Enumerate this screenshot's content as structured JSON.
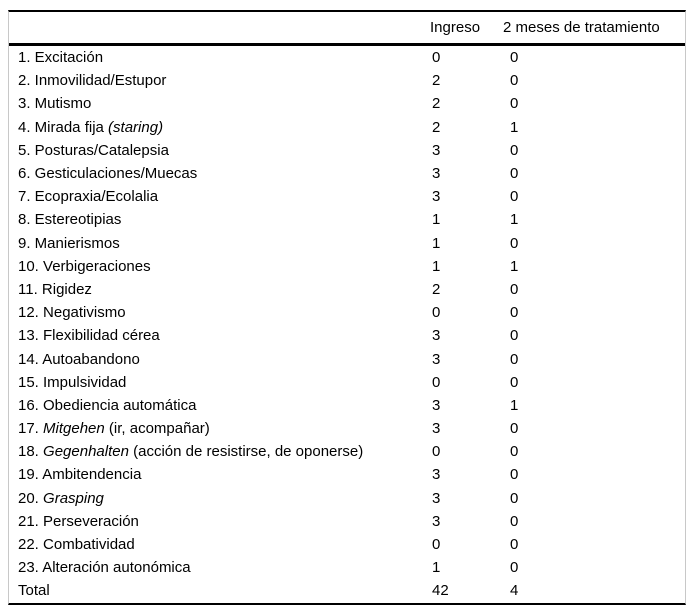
{
  "page": {
    "background_color": "#ffffff",
    "text_color": "#000000",
    "rule_color": "#000000",
    "side_rule_color": "#c8c8c8"
  },
  "header": {
    "ingreso": "Ingreso",
    "tratamiento": "2 meses de tratamiento"
  },
  "rows": [
    {
      "parts": [
        {
          "t": "1. Excitación",
          "i": false
        }
      ],
      "ingreso": "0",
      "tratamiento": "0"
    },
    {
      "parts": [
        {
          "t": "2. Inmovilidad/Estupor",
          "i": false
        }
      ],
      "ingreso": "2",
      "tratamiento": "0"
    },
    {
      "parts": [
        {
          "t": "3. Mutismo",
          "i": false
        }
      ],
      "ingreso": "2",
      "tratamiento": "0"
    },
    {
      "parts": [
        {
          "t": "4. Mirada fija ",
          "i": false
        },
        {
          "t": "(staring)",
          "i": true
        }
      ],
      "ingreso": "2",
      "tratamiento": "1"
    },
    {
      "parts": [
        {
          "t": "5. Posturas/Catalepsia",
          "i": false
        }
      ],
      "ingreso": "3",
      "tratamiento": "0"
    },
    {
      "parts": [
        {
          "t": "6. Gesticulaciones/Muecas",
          "i": false
        }
      ],
      "ingreso": "3",
      "tratamiento": "0"
    },
    {
      "parts": [
        {
          "t": "7. Ecopraxia/Ecolalia",
          "i": false
        }
      ],
      "ingreso": "3",
      "tratamiento": "0"
    },
    {
      "parts": [
        {
          "t": "8. Estereotipias",
          "i": false
        }
      ],
      "ingreso": "1",
      "tratamiento": "1"
    },
    {
      "parts": [
        {
          "t": "9. Manierismos",
          "i": false
        }
      ],
      "ingreso": "1",
      "tratamiento": "0"
    },
    {
      "parts": [
        {
          "t": "10. Verbigeraciones",
          "i": false
        }
      ],
      "ingreso": "1",
      "tratamiento": "1"
    },
    {
      "parts": [
        {
          "t": "11. Rigidez",
          "i": false
        }
      ],
      "ingreso": "2",
      "tratamiento": "0"
    },
    {
      "parts": [
        {
          "t": "12. Negativismo",
          "i": false
        }
      ],
      "ingreso": "0",
      "tratamiento": "0"
    },
    {
      "parts": [
        {
          "t": "13. Flexibilidad cérea",
          "i": false
        }
      ],
      "ingreso": "3",
      "tratamiento": "0"
    },
    {
      "parts": [
        {
          "t": "14. Autoabandono",
          "i": false
        }
      ],
      "ingreso": "3",
      "tratamiento": "0"
    },
    {
      "parts": [
        {
          "t": "15. Impulsividad",
          "i": false
        }
      ],
      "ingreso": "0",
      "tratamiento": "0"
    },
    {
      "parts": [
        {
          "t": "16. Obediencia automática",
          "i": false
        }
      ],
      "ingreso": "3",
      "tratamiento": "1"
    },
    {
      "parts": [
        {
          "t": "17. ",
          "i": false
        },
        {
          "t": "Mitgehen",
          "i": true
        },
        {
          "t": " (ir, acompañar)",
          "i": false
        }
      ],
      "ingreso": "3",
      "tratamiento": "0"
    },
    {
      "parts": [
        {
          "t": "18. ",
          "i": false
        },
        {
          "t": "Gegenhalten",
          "i": true
        },
        {
          "t": " (acción de resistirse, de oponerse)",
          "i": false
        }
      ],
      "ingreso": "0",
      "tratamiento": "0"
    },
    {
      "parts": [
        {
          "t": "19. Ambitendencia",
          "i": false
        }
      ],
      "ingreso": "3",
      "tratamiento": "0"
    },
    {
      "parts": [
        {
          "t": "20. ",
          "i": false
        },
        {
          "t": "Grasping",
          "i": true
        }
      ],
      "ingreso": "3",
      "tratamiento": "0"
    },
    {
      "parts": [
        {
          "t": "21. Perseveración",
          "i": false
        }
      ],
      "ingreso": "3",
      "tratamiento": "0"
    },
    {
      "parts": [
        {
          "t": "22. Combatividad",
          "i": false
        }
      ],
      "ingreso": "0",
      "tratamiento": "0"
    },
    {
      "parts": [
        {
          "t": "23. Alteración autonómica",
          "i": false
        }
      ],
      "ingreso": "1",
      "tratamiento": "0"
    },
    {
      "parts": [
        {
          "t": "Total",
          "i": false
        }
      ],
      "ingreso": "42",
      "tratamiento": "4"
    }
  ]
}
